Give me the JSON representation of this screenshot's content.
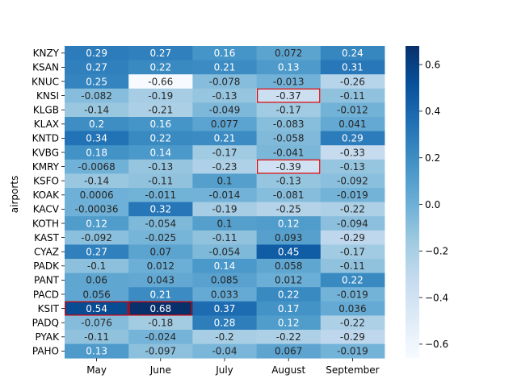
{
  "chart_data": {
    "type": "heatmap",
    "title": "",
    "xlabel": "",
    "ylabel": "airports",
    "x_categories": [
      "May",
      "June",
      "July",
      "August",
      "September"
    ],
    "y_categories": [
      "KNZY",
      "KSAN",
      "KNUC",
      "KNSI",
      "KLGB",
      "KLAX",
      "KNTD",
      "KVBG",
      "KMRY",
      "KSFO",
      "KOAK",
      "KACV",
      "KOTH",
      "KAST",
      "CYAZ",
      "PADK",
      "PANT",
      "PACD",
      "KSIT",
      "PADQ",
      "PYAK",
      "PAHO"
    ],
    "cells": [
      [
        "0.29",
        "0.27",
        "0.16",
        "0.072",
        "0.24"
      ],
      [
        "0.27",
        "0.22",
        "0.21",
        "0.13",
        "0.31"
      ],
      [
        "0.25",
        "-0.66",
        "-0.078",
        "-0.013",
        "-0.26"
      ],
      [
        "-0.082",
        "-0.19",
        "-0.13",
        "-0.37",
        "-0.11"
      ],
      [
        "-0.14",
        "-0.21",
        "-0.049",
        "-0.17",
        "-0.012"
      ],
      [
        "0.2",
        "0.16",
        "0.077",
        "-0.083",
        "0.041"
      ],
      [
        "0.34",
        "0.22",
        "0.21",
        "-0.058",
        "0.29"
      ],
      [
        "0.18",
        "0.14",
        "-0.17",
        "-0.041",
        "-0.33"
      ],
      [
        "-0.0068",
        "-0.13",
        "-0.23",
        "-0.39",
        "-0.13"
      ],
      [
        "-0.14",
        "-0.11",
        "0.1",
        "-0.13",
        "-0.092"
      ],
      [
        "0.0006",
        "-0.011",
        "-0.014",
        "-0.081",
        "-0.019"
      ],
      [
        "-0.00036",
        "0.32",
        "-0.19",
        "-0.25",
        "-0.22"
      ],
      [
        "0.12",
        "-0.054",
        "0.1",
        "0.12",
        "-0.094"
      ],
      [
        "-0.092",
        "-0.025",
        "-0.11",
        "0.093",
        "-0.29"
      ],
      [
        "0.27",
        "0.07",
        "-0.054",
        "0.45",
        "-0.17"
      ],
      [
        "-0.1",
        "0.012",
        "0.14",
        "0.058",
        "-0.11"
      ],
      [
        "0.06",
        "0.043",
        "0.085",
        "0.012",
        "0.22"
      ],
      [
        "0.056",
        "0.21",
        "0.033",
        "0.22",
        "-0.019"
      ],
      [
        "0.54",
        "0.68",
        "0.37",
        "0.17",
        "0.036"
      ],
      [
        "-0.076",
        "-0.18",
        "0.28",
        "0.12",
        "-0.22"
      ],
      [
        "-0.11",
        "-0.024",
        "-0.2",
        "-0.22",
        "-0.29"
      ],
      [
        "0.13",
        "-0.097",
        "-0.04",
        "0.067",
        "-0.019"
      ]
    ],
    "color_range": [
      -0.66,
      0.68
    ],
    "colorbar_ticks": [
      "0.6",
      "0.4",
      "0.2",
      "0.0",
      "−0.2",
      "−0.4",
      "−0.6"
    ],
    "colorbar_tick_values": [
      0.6,
      0.4,
      0.2,
      0.0,
      -0.2,
      -0.4,
      -0.6
    ],
    "colormap": "Blues",
    "highlighted_cells": [
      {
        "row": "KNSI",
        "col": "August"
      },
      {
        "row": "KMRY",
        "col": "August"
      },
      {
        "row": "KSIT",
        "col": "May"
      },
      {
        "row": "KSIT",
        "col": "June"
      }
    ],
    "highlight_color": "#dd0000",
    "grid": false,
    "legend": "colorbar-right"
  }
}
